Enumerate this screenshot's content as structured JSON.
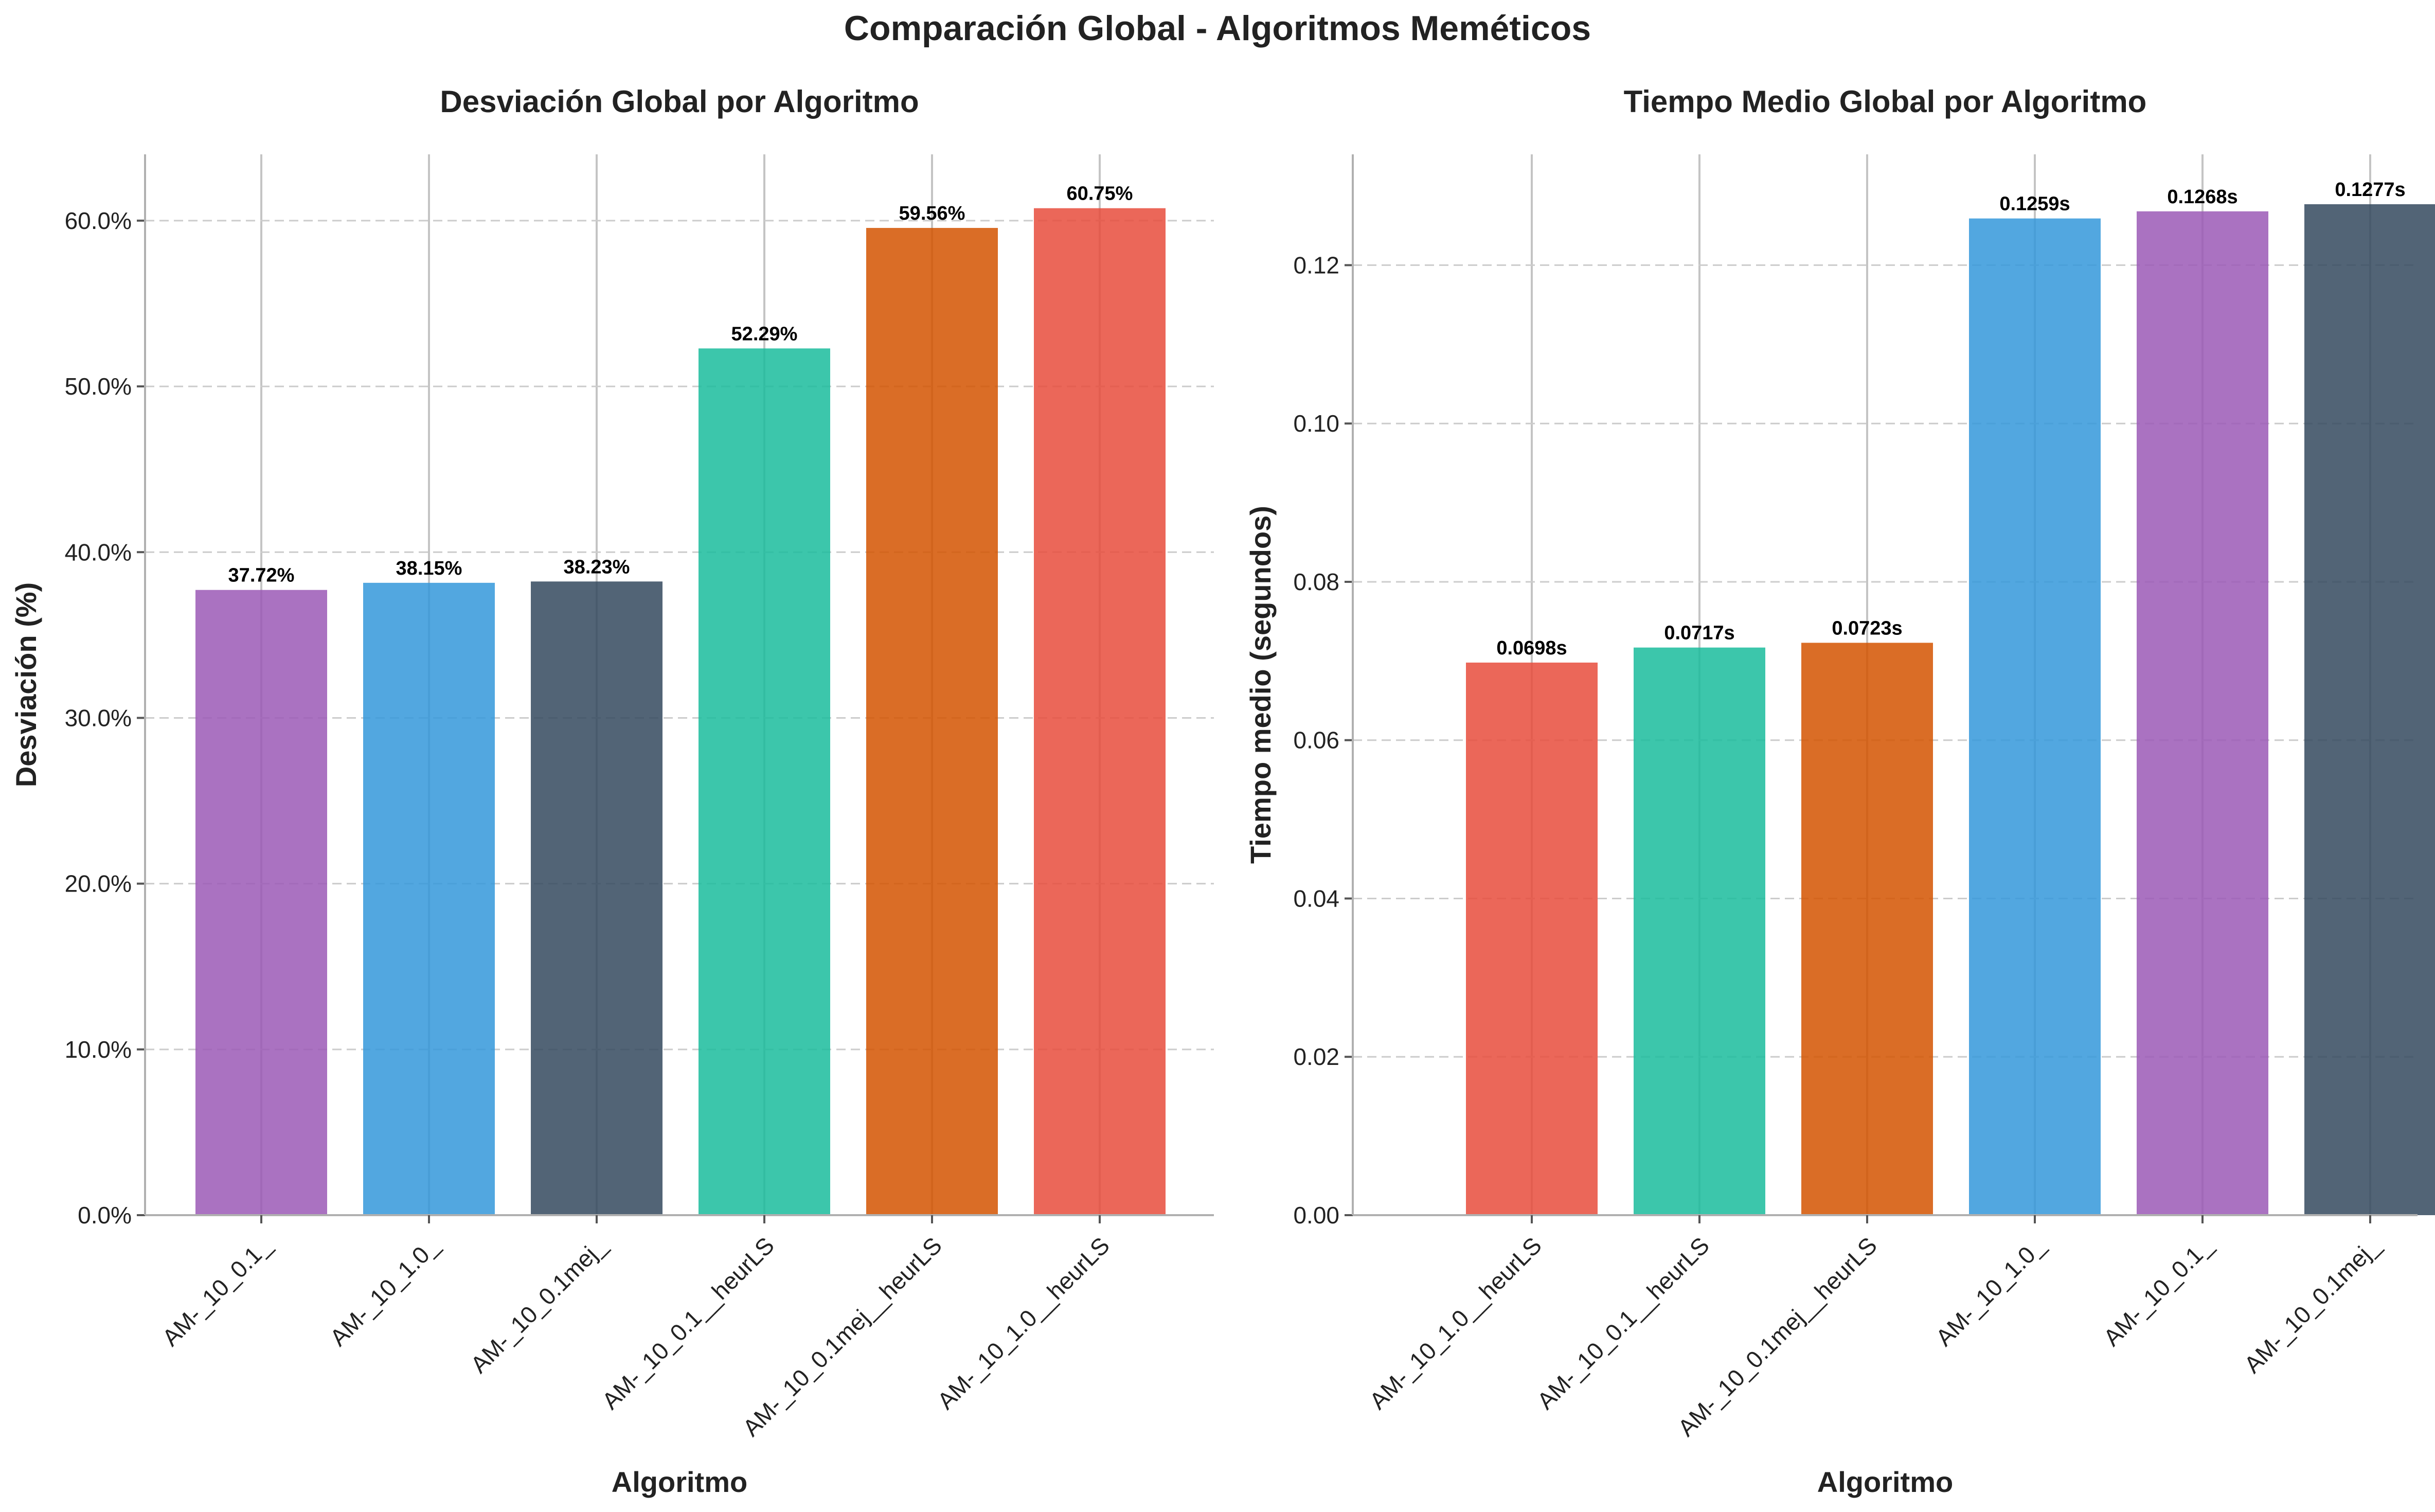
{
  "figure_title": "Comparación Global - Algoritmos Meméticos",
  "chart_data": [
    {
      "type": "bar",
      "title": "Desviación Global por Algoritmo",
      "xlabel": "Algoritmo",
      "ylabel": "Desviación (%)",
      "ylim": [
        0,
        64
      ],
      "yticks": [
        0,
        10,
        20,
        30,
        40,
        50,
        60
      ],
      "ytick_format": "percent",
      "categories": [
        "AM-_10_0.1_",
        "AM-_10_1.0_",
        "AM-_10_0.1mej_",
        "AM-_10_0.1__heurLS",
        "AM-_10_0.1mej__heurLS",
        "AM-_10_1.0__heurLS"
      ],
      "values": [
        37.72,
        38.15,
        38.23,
        52.29,
        59.56,
        60.75
      ],
      "data_labels": [
        "37.72%",
        "38.15%",
        "38.23%",
        "52.29%",
        "59.56%",
        "60.75%"
      ],
      "colors": [
        "#9b59b6",
        "#3498db",
        "#34495e",
        "#1abc9c",
        "#d35400",
        "#e74c3c"
      ],
      "grid": true
    },
    {
      "type": "bar",
      "title": "Tiempo Medio Global por Algoritmo",
      "xlabel": "Algoritmo",
      "ylabel": "Tiempo medio (segundos)",
      "ylim": [
        0,
        0.134
      ],
      "yticks": [
        0,
        0.02,
        0.04,
        0.06,
        0.08,
        0.1,
        0.12
      ],
      "ytick_format": "fixed2",
      "categories": [
        "AM-_10_1.0__heurLS",
        "AM-_10_0.1__heurLS",
        "AM-_10_0.1mej__heurLS",
        "AM-_10_1.0_",
        "AM-_10_0.1_",
        "AM-_10_0.1mej_"
      ],
      "values": [
        0.0698,
        0.0717,
        0.0723,
        0.1259,
        0.1268,
        0.1277
      ],
      "data_labels": [
        "0.0698s",
        "0.0717s",
        "0.0723s",
        "0.1259s",
        "0.1268s",
        "0.1277s"
      ],
      "colors": [
        "#e74c3c",
        "#1abc9c",
        "#d35400",
        "#3498db",
        "#9b59b6",
        "#34495e"
      ],
      "grid": true
    }
  ]
}
